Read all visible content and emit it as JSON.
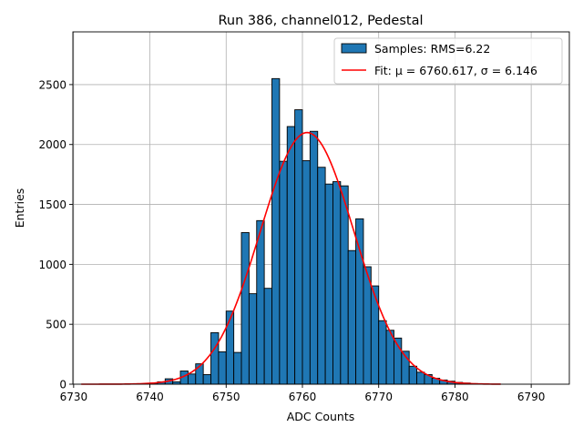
{
  "chart_data": {
    "type": "bar",
    "title": "Run 386, channel012, Pedestal",
    "xlabel": "ADC Counts",
    "ylabel": "Entries",
    "xlim": [
      6729.9,
      6795.0
    ],
    "ylim": [
      0,
      2940
    ],
    "x_ticks": [
      6730,
      6740,
      6750,
      6760,
      6770,
      6780,
      6790
    ],
    "y_ticks": [
      0,
      500,
      1000,
      1500,
      2000,
      2500
    ],
    "grid": true,
    "legend": {
      "placement": "top-right",
      "entries": [
        "Samples: RMS=6.22",
        "Fit: μ = 6760.617, σ = 6.146"
      ]
    },
    "bin_width": 1,
    "series": [
      {
        "name": "Samples: RMS=6.22",
        "kind": "histogram",
        "color": "#1f77b4",
        "edgecolor": "#000000",
        "bin_centers": [
          6740.5,
          6741.5,
          6742.5,
          6743.5,
          6744.5,
          6745.5,
          6746.5,
          6747.5,
          6748.5,
          6749.5,
          6750.5,
          6751.5,
          6752.5,
          6753.5,
          6754.5,
          6755.5,
          6756.5,
          6757.5,
          6758.5,
          6759.5,
          6760.5,
          6761.5,
          6762.5,
          6763.5,
          6764.5,
          6765.5,
          6766.5,
          6767.5,
          6768.5,
          6769.5,
          6770.5,
          6771.5,
          6772.5,
          6773.5,
          6774.5,
          6775.5,
          6776.5,
          6777.5,
          6778.5,
          6779.5,
          6780.5,
          6781.5,
          6782.5,
          6783.5
        ],
        "values": [
          10,
          20,
          45,
          20,
          110,
          85,
          170,
          80,
          430,
          270,
          610,
          265,
          1265,
          755,
          1365,
          800,
          2550,
          1860,
          2150,
          2290,
          1865,
          2110,
          1810,
          1670,
          1690,
          1655,
          1115,
          1380,
          980,
          820,
          530,
          450,
          385,
          275,
          150,
          100,
          80,
          50,
          35,
          25,
          15,
          10,
          5,
          2
        ]
      },
      {
        "name": "Fit: μ = 6760.617, σ = 6.146",
        "kind": "fit",
        "color": "#ff0000",
        "mu": 6760.617,
        "sigma": 6.146,
        "amplitude": 2100,
        "x_range": [
          6731,
          6786
        ]
      }
    ]
  }
}
